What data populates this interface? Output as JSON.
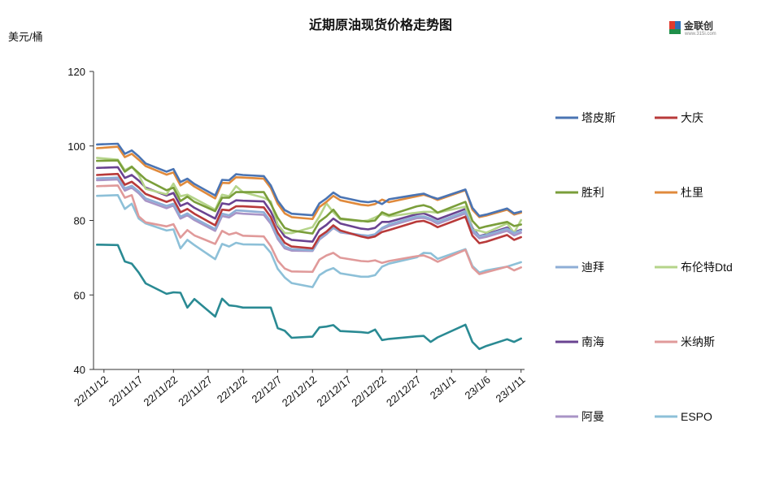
{
  "chart_data": {
    "type": "line",
    "title": "近期原油现货价格走势图",
    "unit_label": "美元/桶",
    "ylim": [
      40,
      120
    ],
    "y_ticks": [
      40,
      60,
      80,
      100,
      120
    ],
    "x_tick_labels": [
      "22/11/12",
      "22/11/17",
      "22/11/22",
      "22/11/27",
      "22/12/2",
      "22/12/7",
      "22/12/12",
      "22/12/17",
      "22/12/22",
      "22/12/27",
      "23/1/1",
      "23/1/6",
      "23/1/11"
    ],
    "x_dates": [
      "2022-11-11",
      "2022-11-14",
      "2022-11-15",
      "2022-11-16",
      "2022-11-17",
      "2022-11-18",
      "2022-11-21",
      "2022-11-22",
      "2022-11-23",
      "2022-11-24",
      "2022-11-25",
      "2022-11-28",
      "2022-11-29",
      "2022-11-30",
      "2022-12-01",
      "2022-12-02",
      "2022-12-05",
      "2022-12-06",
      "2022-12-07",
      "2022-12-08",
      "2022-12-09",
      "2022-12-12",
      "2022-12-13",
      "2022-12-14",
      "2022-12-15",
      "2022-12-16",
      "2022-12-19",
      "2022-12-20",
      "2022-12-21",
      "2022-12-22",
      "2022-12-23",
      "2022-12-27",
      "2022-12-28",
      "2022-12-29",
      "2022-12-30",
      "2023-01-03",
      "2023-01-04",
      "2023-01-05",
      "2023-01-06",
      "2023-01-09",
      "2023-01-10",
      "2023-01-11"
    ],
    "legend": {
      "placement": "right"
    },
    "series": [
      {
        "name": "塔皮斯",
        "color": "#4a74b3",
        "values": [
          100.4,
          100.6,
          97.9,
          98.8,
          97.2,
          95.3,
          93.1,
          93.8,
          90.3,
          91.2,
          89.8,
          86.7,
          90.9,
          90.8,
          92.4,
          92.2,
          91.9,
          89.4,
          85.3,
          82.8,
          81.8,
          81.4,
          84.6,
          85.9,
          87.5,
          86.3,
          85.1,
          84.9,
          85.2,
          84.4,
          85.7,
          86.9,
          87.2,
          86.4,
          85.8,
          88.3,
          83.4,
          81.2,
          81.6,
          83.2,
          81.9,
          82.4
        ]
      },
      {
        "name": "大庆",
        "color": "#b83a3a",
        "values": [
          92.2,
          92.5,
          89.6,
          90.4,
          88.9,
          87.1,
          85.0,
          85.7,
          82.2,
          83.1,
          81.8,
          78.7,
          82.9,
          82.7,
          83.8,
          83.8,
          83.5,
          80.9,
          76.7,
          74.0,
          73.0,
          72.5,
          75.7,
          77.0,
          78.7,
          77.3,
          75.7,
          75.3,
          75.7,
          76.9,
          77.4,
          79.7,
          79.9,
          79.2,
          78.2,
          81.0,
          75.9,
          73.9,
          74.3,
          76.1,
          74.8,
          75.5
        ]
      },
      {
        "name": "胜利",
        "color": "#7a9e3a",
        "values": [
          96.0,
          96.1,
          93.1,
          94.4,
          92.7,
          91.0,
          88.1,
          88.8,
          85.2,
          86.4,
          85.0,
          82.5,
          86.1,
          86.1,
          87.6,
          87.6,
          87.6,
          84.5,
          80.7,
          78.0,
          77.3,
          76.5,
          79.7,
          81.1,
          82.9,
          80.5,
          79.9,
          79.7,
          80.0,
          82.2,
          81.4,
          83.8,
          84.1,
          83.5,
          82.1,
          85.0,
          79.9,
          77.9,
          78.4,
          79.6,
          78.5,
          78.9
        ]
      },
      {
        "name": "杜里",
        "color": "#e08a3c",
        "values": [
          99.4,
          99.8,
          97.0,
          97.9,
          96.3,
          94.6,
          92.3,
          92.9,
          89.4,
          90.5,
          89.1,
          85.9,
          90.1,
          90.0,
          91.6,
          91.5,
          91.2,
          88.7,
          84.5,
          81.9,
          80.9,
          80.4,
          83.6,
          85.0,
          86.6,
          85.4,
          84.2,
          84.0,
          84.4,
          85.6,
          84.9,
          86.5,
          86.9,
          86.3,
          85.5,
          88.1,
          82.9,
          80.9,
          81.3,
          82.9,
          81.6,
          82.1
        ]
      },
      {
        "name": "迪拜",
        "color": "#8eaed6",
        "values": [
          91.3,
          91.5,
          88.6,
          89.3,
          87.8,
          85.9,
          83.9,
          84.5,
          81.0,
          81.9,
          80.6,
          77.7,
          81.8,
          81.4,
          82.7,
          82.6,
          82.2,
          79.7,
          75.6,
          73.0,
          72.3,
          72.0,
          75.1,
          76.5,
          78.1,
          76.9,
          76.1,
          75.9,
          76.3,
          78.0,
          78.9,
          81.1,
          81.1,
          80.5,
          79.6,
          82.4,
          77.6,
          75.7,
          76.1,
          77.8,
          76.6,
          77.3
        ]
      },
      {
        "name": "布伦特Dtd",
        "color": "#b5d48a",
        "values": [
          96.8,
          96.3,
          93.5,
          94.5,
          92.2,
          88.5,
          87.0,
          89.9,
          86.5,
          86.9,
          85.9,
          82.9,
          86.9,
          86.5,
          89.2,
          87.6,
          86.1,
          85.1,
          78.9,
          76.6,
          76.6,
          78.2,
          81.1,
          84.6,
          82.2,
          80.3,
          79.8,
          80.0,
          80.8,
          81.7,
          81.1,
          82.1,
          82.3,
          82.3,
          82.1,
          83.7,
          77.6,
          77.2,
          76.7,
          79.2,
          76.7,
          80.1
        ]
      },
      {
        "name": "南海",
        "color": "#6a4391",
        "values": [
          94.1,
          94.3,
          91.4,
          92.2,
          90.7,
          88.8,
          86.7,
          87.4,
          83.9,
          84.7,
          83.4,
          80.5,
          84.6,
          84.3,
          85.4,
          85.3,
          85.1,
          82.4,
          78.4,
          75.7,
          74.8,
          74.3,
          77.5,
          78.8,
          80.5,
          79.2,
          77.8,
          77.6,
          78.0,
          79.6,
          79.6,
          81.7,
          81.9,
          81.2,
          80.3,
          83.1,
          78.0,
          75.8,
          76.3,
          78.1,
          76.8,
          77.5
        ]
      },
      {
        "name": "米纳斯",
        "color": "#e09a9a",
        "values": [
          89.2,
          89.4,
          86.1,
          86.8,
          81.1,
          79.5,
          78.4,
          79.0,
          75.4,
          77.4,
          76.0,
          73.7,
          77.2,
          76.2,
          76.7,
          75.9,
          75.7,
          73.1,
          69.2,
          67.1,
          66.3,
          66.2,
          69.5,
          70.6,
          71.3,
          70.0,
          69.1,
          69.0,
          69.3,
          68.6,
          69.1,
          70.4,
          70.6,
          69.9,
          68.9,
          72.1,
          67.4,
          65.6,
          66.1,
          67.6,
          66.6,
          67.4
        ]
      },
      {
        "name": "阿曼",
        "color": "#a994c6",
        "values": [
          90.8,
          91.0,
          88.0,
          88.8,
          87.3,
          85.3,
          83.3,
          84.0,
          80.5,
          81.4,
          80.1,
          77.2,
          81.2,
          80.8,
          82.0,
          81.8,
          81.5,
          79.1,
          75.0,
          72.5,
          71.9,
          71.8,
          74.9,
          76.3,
          78.0,
          76.8,
          76.0,
          75.8,
          76.2,
          77.7,
          78.5,
          80.6,
          80.7,
          80.1,
          79.1,
          81.9,
          77.0,
          75.2,
          75.6,
          77.2,
          76.0,
          76.7
        ]
      },
      {
        "name": "ESPO",
        "color": "#8dc0d8",
        "values": [
          86.6,
          86.8,
          83.1,
          84.5,
          80.5,
          79.2,
          77.3,
          77.6,
          72.5,
          74.8,
          73.4,
          69.6,
          73.7,
          73.0,
          74.0,
          73.6,
          73.5,
          71.3,
          67.0,
          64.7,
          63.2,
          62.1,
          65.3,
          66.5,
          67.2,
          65.8,
          64.9,
          64.9,
          65.3,
          67.6,
          68.4,
          70.1,
          71.3,
          71.2,
          69.7,
          72.3,
          67.8,
          66.0,
          66.6,
          67.6,
          68.2,
          68.8
        ]
      },
      {
        "name": "",
        "color": "#2a8a93",
        "values": [
          73.5,
          73.4,
          69.0,
          68.4,
          66.0,
          63.1,
          60.3,
          60.7,
          60.6,
          56.6,
          58.9,
          54.2,
          59.0,
          57.2,
          57.0,
          56.6,
          56.6,
          56.6,
          51.1,
          50.4,
          48.5,
          48.8,
          51.3,
          51.5,
          51.9,
          50.3,
          50.0,
          49.8,
          50.7,
          47.9,
          48.2,
          48.9,
          49.0,
          47.4,
          48.6,
          52.0,
          47.4,
          45.5,
          46.3,
          48.1,
          47.4,
          48.3
        ]
      }
    ]
  },
  "logo": {
    "text": "金联创",
    "sub": "www.315i.com"
  }
}
